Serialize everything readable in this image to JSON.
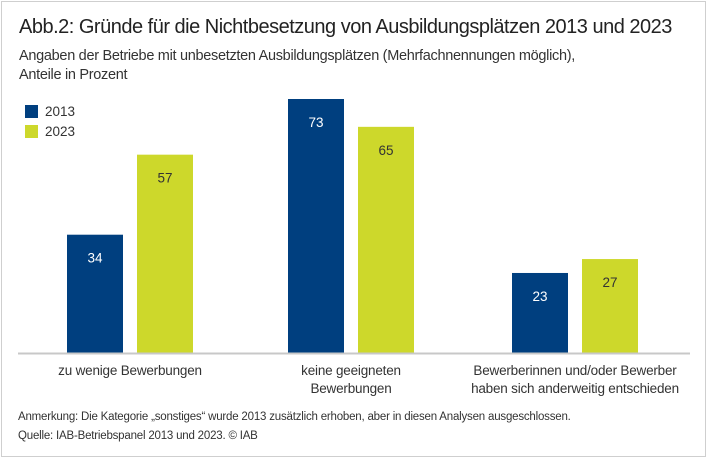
{
  "title": "Abb.2: Gründe für die Nichtbesetzung von Ausbildungsplätzen 2013 und 2023",
  "subtitle_lines": [
    "Angaben der Betriebe mit unbesetzten Ausbildungsplätzen (Mehrfachnennungen möglich),",
    "Anteile in Prozent"
  ],
  "chart_data": {
    "type": "bar",
    "title": "Abb.2: Gründe für die Nichtbesetzung von Ausbildungsplätzen 2013 und 2023",
    "categories": [
      [
        "zu wenige Bewerbungen"
      ],
      [
        "keine geeigneten",
        "Bewerbungen"
      ],
      [
        "Bewerberinnen und/oder Bewerber",
        "haben sich anderweitig entschieden"
      ]
    ],
    "series": [
      {
        "name": "2013",
        "color": "#003f7f",
        "values": [
          34,
          73,
          23
        ]
      },
      {
        "name": "2023",
        "color": "#cdd82b",
        "values": [
          57,
          65,
          27
        ]
      }
    ],
    "ylim": [
      0,
      73
    ],
    "grid": false,
    "legend": "top-left",
    "data_labels": true
  },
  "notes": [
    "Anmerkung: Die Kategorie „sonstiges“ wurde 2013 zusätzlich erhoben, aber in diesen Analysen ausgeschlossen.",
    "Quelle: IAB-Betriebspanel 2013 und 2023.  © IAB"
  ]
}
